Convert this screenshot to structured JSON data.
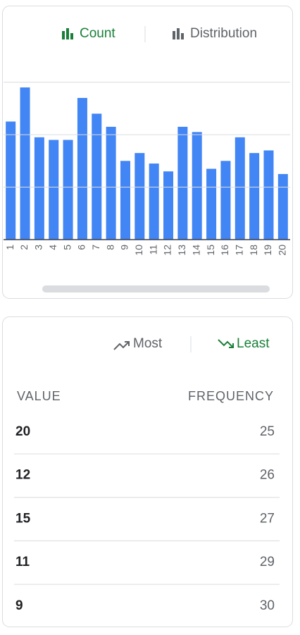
{
  "tabs": {
    "count": "Count",
    "distribution": "Distribution"
  },
  "chart_data": {
    "type": "bar",
    "categories": [
      "1",
      "2",
      "3",
      "4",
      "5",
      "6",
      "7",
      "8",
      "9",
      "10",
      "11",
      "12",
      "13",
      "14",
      "15",
      "16",
      "17",
      "18",
      "19",
      "20"
    ],
    "values": [
      45,
      58,
      39,
      38,
      38,
      54,
      48,
      43,
      30,
      33,
      29,
      26,
      43,
      41,
      27,
      30,
      39,
      33,
      34,
      25
    ],
    "color": "#4285f4",
    "ylim": [
      0,
      65
    ],
    "yticks": [
      0,
      20,
      40,
      60
    ],
    "grid": true
  },
  "table": {
    "sort_tabs": {
      "most": "Most",
      "least": "Least"
    },
    "columns": [
      "VALUE",
      "FREQUENCY"
    ],
    "rows": [
      [
        20,
        25
      ],
      [
        12,
        26
      ],
      [
        15,
        27
      ],
      [
        11,
        29
      ],
      [
        9,
        30
      ]
    ]
  }
}
